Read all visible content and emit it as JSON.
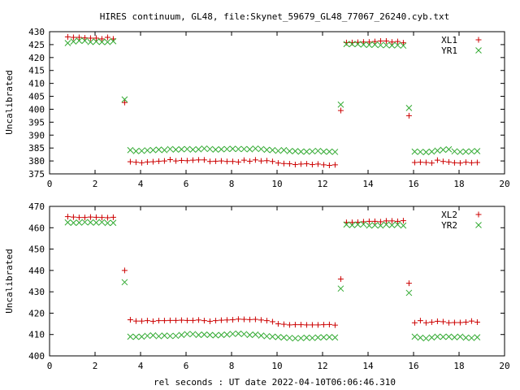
{
  "title": "HIRES continuum, GL48, file:Skynet_59679_GL48_77067_26240.cyb.txt",
  "xlabel": "rel seconds : UT date 2022-04-10T06:06:46.310",
  "colors": {
    "series_a": "#cc0000",
    "series_b": "#33aa33"
  },
  "chart_data": [
    {
      "type": "scatter",
      "ylabel": "Uncalibrated",
      "xlim": [
        0,
        20
      ],
      "ylim": [
        375,
        430
      ],
      "xticks": [
        0,
        2,
        4,
        6,
        8,
        10,
        12,
        14,
        16,
        18,
        20
      ],
      "yticks": [
        375,
        380,
        385,
        390,
        395,
        400,
        405,
        410,
        415,
        420,
        425,
        430
      ],
      "legend_position": "top-right",
      "series": [
        {
          "name": "XL1",
          "marker": "plus",
          "x": [
            0.8,
            1.05,
            1.3,
            1.55,
            1.8,
            2.05,
            2.3,
            2.55,
            2.8,
            3.3,
            3.55,
            3.8,
            4.05,
            4.3,
            4.55,
            4.8,
            5.05,
            5.3,
            5.55,
            5.8,
            6.05,
            6.3,
            6.55,
            6.8,
            7.05,
            7.3,
            7.55,
            7.8,
            8.05,
            8.3,
            8.55,
            8.8,
            9.05,
            9.3,
            9.55,
            9.8,
            10.05,
            10.3,
            10.55,
            10.8,
            11.05,
            11.3,
            11.55,
            11.8,
            12.05,
            12.3,
            12.55,
            12.8,
            13.05,
            13.3,
            13.55,
            13.8,
            14.05,
            14.3,
            14.55,
            14.8,
            15.05,
            15.3,
            15.55,
            15.8,
            16.05,
            16.3,
            16.55,
            16.8,
            17.05,
            17.3,
            17.55,
            17.8,
            18.05,
            18.3,
            18.55,
            18.8
          ],
          "y": [
            428,
            427.8,
            427.8,
            427.6,
            427.5,
            427.5,
            427.2,
            427.8,
            427.2,
            402.6,
            379.7,
            379.5,
            379.3,
            379.6,
            379.7,
            379.9,
            380.0,
            380.5,
            380.0,
            380.2,
            380.1,
            380.3,
            380.4,
            380.4,
            379.8,
            379.9,
            380.0,
            379.8,
            379.8,
            379.6,
            380.3,
            379.9,
            380.4,
            380.0,
            380.1,
            379.8,
            379.2,
            379.0,
            378.9,
            378.6,
            378.8,
            378.9,
            378.6,
            378.8,
            378.5,
            378.3,
            378.5,
            399.5,
            425.8,
            425.8,
            425.9,
            426.0,
            426.0,
            426.2,
            426.4,
            426.4,
            426.0,
            426.2,
            425.7,
            397.5,
            379.4,
            379.5,
            379.4,
            379.2,
            380.3,
            379.8,
            379.6,
            379.3,
            379.2,
            379.5,
            379.3,
            379.4
          ]
        },
        {
          "name": "YR1",
          "marker": "cross",
          "x": [
            0.8,
            1.05,
            1.3,
            1.55,
            1.8,
            2.05,
            2.3,
            2.55,
            2.8,
            3.3,
            3.55,
            3.8,
            4.05,
            4.3,
            4.55,
            4.8,
            5.05,
            5.3,
            5.55,
            5.8,
            6.05,
            6.3,
            6.55,
            6.8,
            7.05,
            7.3,
            7.55,
            7.8,
            8.05,
            8.3,
            8.55,
            8.8,
            9.05,
            9.3,
            9.55,
            9.8,
            10.05,
            10.3,
            10.55,
            10.8,
            11.05,
            11.3,
            11.55,
            11.8,
            12.05,
            12.3,
            12.55,
            12.8,
            13.05,
            13.3,
            13.55,
            13.8,
            14.05,
            14.3,
            14.55,
            14.8,
            15.05,
            15.3,
            15.55,
            15.8,
            16.05,
            16.3,
            16.55,
            16.8,
            17.05,
            17.3,
            17.55,
            17.8,
            18.05,
            18.3,
            18.55,
            18.8
          ],
          "y": [
            425.6,
            426.2,
            426.5,
            426.5,
            426.0,
            426.2,
            426.0,
            426.0,
            426.3,
            403.8,
            384.2,
            383.8,
            383.9,
            384.1,
            384.2,
            384.4,
            384.2,
            384.6,
            384.4,
            384.5,
            384.6,
            384.4,
            384.5,
            384.8,
            384.6,
            384.4,
            384.5,
            384.6,
            384.7,
            384.6,
            384.6,
            384.5,
            384.8,
            384.6,
            384.3,
            384.2,
            383.9,
            384.2,
            383.8,
            383.8,
            383.6,
            383.6,
            383.7,
            383.9,
            383.6,
            383.6,
            383.5,
            401.8,
            425.2,
            425.2,
            425.2,
            425.0,
            424.9,
            425.0,
            424.8,
            424.8,
            424.7,
            424.8,
            424.6,
            400.5,
            383.6,
            383.5,
            383.4,
            383.6,
            384.0,
            384.3,
            384.5,
            383.7,
            383.5,
            383.6,
            383.7,
            383.8
          ]
        }
      ]
    },
    {
      "type": "scatter",
      "ylabel": "Uncalibrated",
      "xlim": [
        0,
        20
      ],
      "ylim": [
        400,
        470
      ],
      "xticks": [
        0,
        2,
        4,
        6,
        8,
        10,
        12,
        14,
        16,
        18,
        20
      ],
      "yticks": [
        400,
        410,
        420,
        430,
        440,
        450,
        460,
        470
      ],
      "legend_position": "top-right",
      "series": [
        {
          "name": "XL2",
          "marker": "plus",
          "x": [
            0.8,
            1.05,
            1.3,
            1.55,
            1.8,
            2.05,
            2.3,
            2.55,
            2.8,
            3.3,
            3.55,
            3.8,
            4.05,
            4.3,
            4.55,
            4.8,
            5.05,
            5.3,
            5.55,
            5.8,
            6.05,
            6.3,
            6.55,
            6.8,
            7.05,
            7.3,
            7.55,
            7.8,
            8.05,
            8.3,
            8.55,
            8.8,
            9.05,
            9.3,
            9.55,
            9.8,
            10.05,
            10.3,
            10.55,
            10.8,
            11.05,
            11.3,
            11.55,
            11.8,
            12.05,
            12.3,
            12.55,
            12.8,
            13.05,
            13.3,
            13.55,
            13.8,
            14.05,
            14.3,
            14.55,
            14.8,
            15.05,
            15.3,
            15.55,
            15.8,
            16.05,
            16.3,
            16.55,
            16.8,
            17.05,
            17.3,
            17.55,
            17.8,
            18.05,
            18.3,
            18.55,
            18.8
          ],
          "y": [
            465.2,
            465.0,
            464.8,
            464.8,
            465.0,
            464.9,
            464.8,
            464.7,
            464.9,
            440.0,
            416.9,
            416.3,
            416.3,
            416.5,
            416.2,
            416.5,
            416.5,
            416.6,
            416.6,
            416.7,
            416.6,
            416.6,
            416.8,
            416.5,
            416.2,
            416.5,
            416.7,
            416.8,
            416.9,
            417.2,
            417.1,
            417.0,
            417.1,
            416.8,
            416.5,
            416.0,
            415.0,
            414.8,
            414.5,
            414.6,
            414.6,
            414.5,
            414.5,
            414.5,
            414.6,
            414.7,
            414.4,
            436.0,
            462.5,
            462.5,
            462.6,
            462.8,
            463.0,
            463.0,
            462.8,
            463.2,
            463.2,
            463.0,
            463.3,
            434.0,
            415.5,
            416.5,
            415.5,
            415.8,
            416.2,
            416.0,
            415.5,
            415.6,
            415.6,
            415.8,
            416.3,
            415.8
          ]
        },
        {
          "name": "YR2",
          "marker": "cross",
          "x": [
            0.8,
            1.05,
            1.3,
            1.55,
            1.8,
            2.05,
            2.3,
            2.55,
            2.8,
            3.3,
            3.55,
            3.8,
            4.05,
            4.3,
            4.55,
            4.8,
            5.05,
            5.3,
            5.55,
            5.8,
            6.05,
            6.3,
            6.55,
            6.8,
            7.05,
            7.3,
            7.55,
            7.8,
            8.05,
            8.3,
            8.55,
            8.8,
            9.05,
            9.3,
            9.55,
            9.8,
            10.05,
            10.3,
            10.55,
            10.8,
            11.05,
            11.3,
            11.55,
            11.8,
            12.05,
            12.3,
            12.55,
            12.8,
            13.05,
            13.3,
            13.55,
            13.8,
            14.05,
            14.3,
            14.55,
            14.8,
            15.05,
            15.3,
            15.55,
            15.8,
            16.05,
            16.3,
            16.55,
            16.8,
            17.05,
            17.3,
            17.55,
            17.8,
            18.05,
            18.3,
            18.55,
            18.8
          ],
          "y": [
            462.5,
            462.3,
            462.4,
            462.6,
            462.5,
            462.4,
            462.6,
            462.2,
            462.3,
            434.5,
            409.0,
            408.9,
            409.0,
            409.4,
            409.6,
            409.2,
            409.5,
            409.3,
            409.4,
            409.8,
            410.2,
            410.2,
            409.8,
            410.0,
            409.8,
            409.6,
            409.8,
            410.0,
            410.3,
            410.4,
            410.2,
            409.8,
            410.0,
            409.5,
            409.2,
            409.0,
            408.8,
            408.6,
            408.4,
            408.2,
            408.3,
            408.5,
            408.4,
            408.6,
            408.7,
            408.8,
            408.6,
            431.5,
            461.5,
            461.2,
            461.5,
            461.6,
            461.0,
            461.2,
            461.0,
            461.5,
            461.2,
            461.5,
            461.0,
            429.5,
            409.0,
            408.5,
            408.2,
            408.6,
            409.0,
            408.9,
            409.0,
            408.7,
            409.0,
            408.5,
            408.4,
            408.7
          ]
        }
      ]
    }
  ]
}
